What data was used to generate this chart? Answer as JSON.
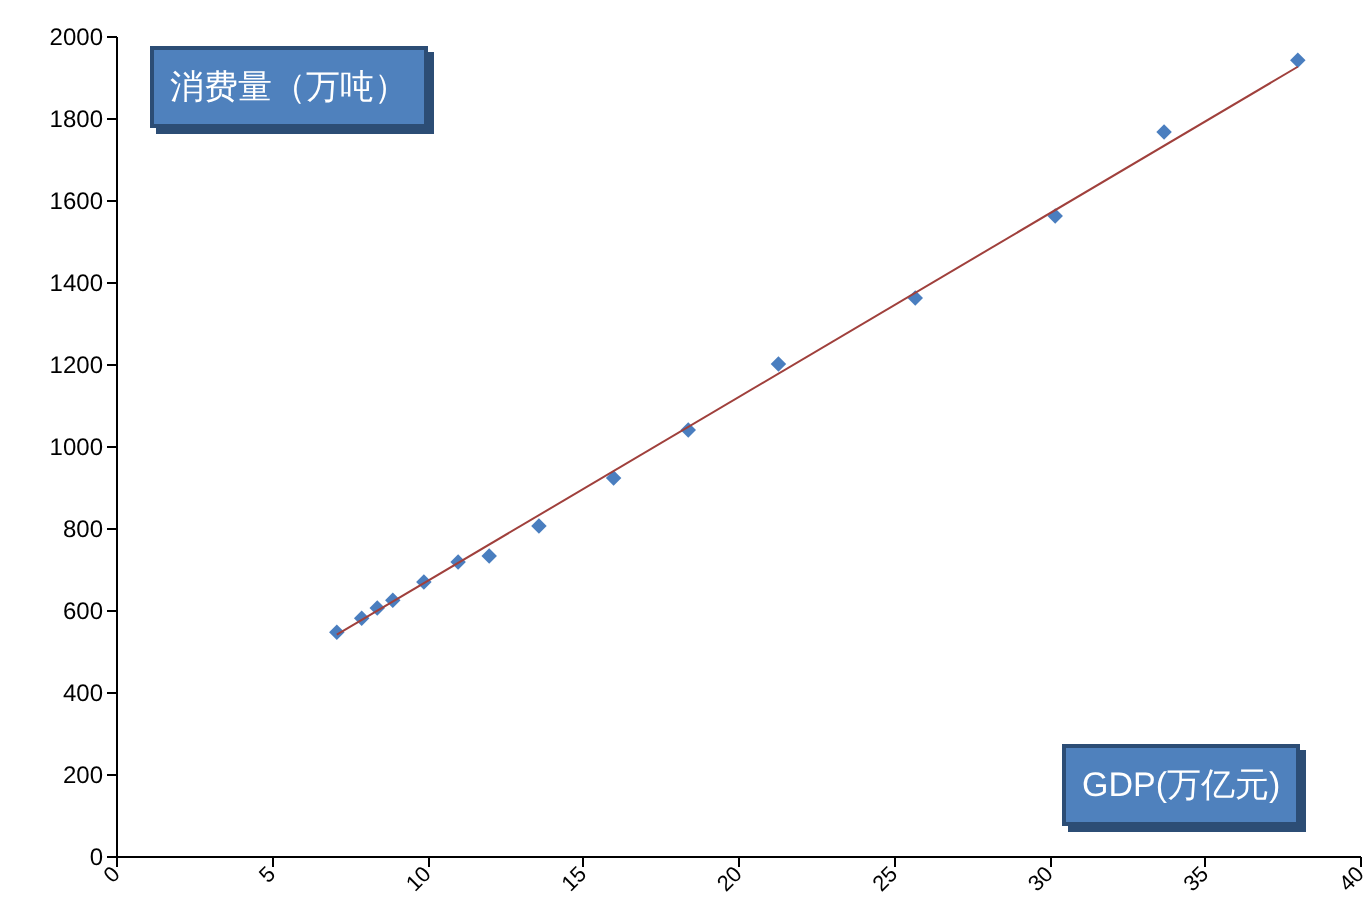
{
  "chart_data": {
    "type": "scatter",
    "xlabel": "GDP(万亿元)",
    "ylabel": "消费量（万吨）",
    "xlim": [
      0,
      40
    ],
    "xticks": [
      0,
      5,
      10,
      15,
      20,
      25,
      30,
      35,
      40
    ],
    "ylim": [
      0,
      2000
    ],
    "yticks": [
      0,
      200,
      400,
      600,
      800,
      1000,
      1200,
      1400,
      1600,
      1800,
      2000
    ],
    "grid": false,
    "series": [
      {
        "marker": "diamond",
        "color": "#4a7ebf",
        "x": [
          7.1,
          7.9,
          8.4,
          8.9,
          9.9,
          11.0,
          12.0,
          13.6,
          16.0,
          18.4,
          21.3,
          25.7,
          30.2,
          33.7,
          38.0
        ],
        "values": [
          546,
          580,
          605,
          624,
          668,
          717,
          732,
          805,
          922,
          1039,
          1200,
          1361,
          1561,
          1766,
          1941
        ]
      },
      {
        "type": "line",
        "color": "#a0403c",
        "x": [
          7.1,
          38.0
        ],
        "values": [
          540,
          1925
        ]
      }
    ]
  }
}
